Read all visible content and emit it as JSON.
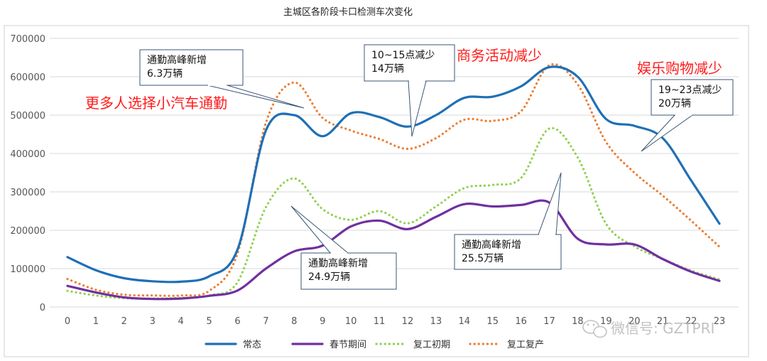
{
  "chart_data": {
    "type": "line",
    "title": "主城区各阶段卡口检测车次变化",
    "xlabel": "",
    "ylabel": "",
    "x": [
      "0",
      "1",
      "2",
      "3",
      "4",
      "5",
      "6",
      "7",
      "8",
      "9",
      "10",
      "11",
      "12",
      "13",
      "14",
      "15",
      "16",
      "17",
      "18",
      "19",
      "20",
      "21",
      "22",
      "23"
    ],
    "x_tick_labels": [
      "0",
      "1",
      "2",
      "3",
      "4",
      "5",
      "6",
      "7",
      "8",
      "9",
      "10",
      "11",
      "12",
      "13",
      "14",
      "15",
      "16",
      "17",
      "18",
      "19",
      "20",
      "21",
      "22",
      "23"
    ],
    "ylim": [
      0,
      700000
    ],
    "y_ticks": [
      0,
      100000,
      200000,
      300000,
      400000,
      500000,
      600000,
      700000
    ],
    "grid": true,
    "legend": "bottom",
    "series": [
      {
        "name": "常态",
        "color": "#1f6fb6",
        "style": "solid",
        "values": [
          130000,
          96000,
          75000,
          67000,
          66000,
          80000,
          150000,
          460000,
          500000,
          445000,
          505000,
          495000,
          470000,
          500000,
          545000,
          548000,
          575000,
          625000,
          600000,
          490000,
          472000,
          440000,
          330000,
          217000
        ]
      },
      {
        "name": "春节期间",
        "color": "#7030a0",
        "style": "solid",
        "values": [
          55000,
          38000,
          25000,
          21000,
          22000,
          29000,
          43000,
          100000,
          145000,
          160000,
          210000,
          225000,
          203000,
          235000,
          268000,
          262000,
          266000,
          272000,
          178000,
          163000,
          163000,
          125000,
          92000,
          68000
        ]
      },
      {
        "name": "复工初期",
        "color": "#92d050",
        "style": "dotted",
        "values": [
          42000,
          30000,
          23000,
          22000,
          24000,
          30000,
          65000,
          260000,
          335000,
          255000,
          227000,
          250000,
          218000,
          262000,
          310000,
          318000,
          336000,
          465000,
          390000,
          217000,
          158000,
          125000,
          95000,
          72000
        ]
      },
      {
        "name": "复工复产",
        "color": "#ed7d31",
        "style": "dotted",
        "values": [
          73000,
          45000,
          32000,
          30000,
          30000,
          42000,
          140000,
          480000,
          585000,
          493000,
          460000,
          438000,
          412000,
          440000,
          488000,
          485000,
          510000,
          630000,
          580000,
          430000,
          350000,
          290000,
          225000,
          157000
        ]
      }
    ],
    "annotations": [
      {
        "lines": [
          "通勤高峰新增",
          "6.3万辆"
        ]
      },
      {
        "lines": [
          "10~15点减少",
          "14万辆"
        ]
      },
      {
        "lines": [
          "19~23点减少",
          "20万辆"
        ]
      },
      {
        "lines": [
          "通勤高峰新增",
          "24.9万辆"
        ]
      },
      {
        "lines": [
          "通勤高峰新增",
          "25.5万辆"
        ]
      }
    ],
    "red_labels": [
      "更多人选择小汽车通勤",
      "商务活动减少",
      "娱乐购物减少"
    ]
  },
  "watermark": {
    "icon": "wechat-icon",
    "text": "微信号: GZTPRI"
  }
}
